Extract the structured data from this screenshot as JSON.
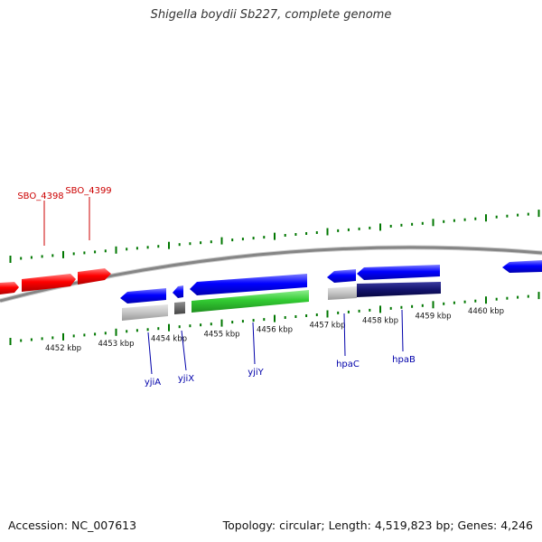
{
  "header": {
    "title": "Shigella boydii Sb227, complete genome"
  },
  "footer": {
    "accession": "Accession: NC_007613",
    "summary": "Topology: circular; Length: 4,519,823 bp; Genes: 4,246"
  },
  "scale": {
    "labels": [
      {
        "kbp": 4452,
        "text": "4452 kbp"
      },
      {
        "kbp": 4453,
        "text": "4453 kbp"
      },
      {
        "kbp": 4454,
        "text": "4454 kbp"
      },
      {
        "kbp": 4455,
        "text": "4455 kbp"
      },
      {
        "kbp": 4456,
        "text": "4456 kbp"
      },
      {
        "kbp": 4457,
        "text": "4457 kbp"
      },
      {
        "kbp": 4458,
        "text": "4458 kbp"
      },
      {
        "kbp": 4459,
        "text": "4459 kbp"
      },
      {
        "kbp": 4460,
        "text": "4460 kbp"
      }
    ]
  },
  "colors": {
    "forward_label": "#cc0000",
    "reverse_label": "#0000aa",
    "forward_gene": "#ff0000",
    "reverse_gene": "#0000ff",
    "tick": "#007700",
    "backbone": "#888888"
  },
  "genes": {
    "forward": [
      {
        "name": "SBO_4398"
      },
      {
        "name": "SBO_4399"
      }
    ],
    "reverse": [
      {
        "name": "yjiA"
      },
      {
        "name": "yjiX"
      },
      {
        "name": "yjiY"
      },
      {
        "name": "hpaC"
      },
      {
        "name": "hpaB"
      }
    ]
  }
}
